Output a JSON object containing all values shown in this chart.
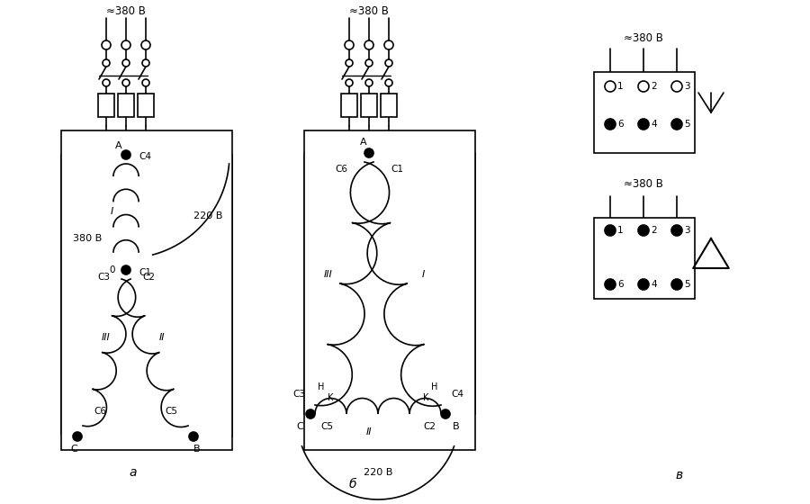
{
  "bg_color": "#ffffff",
  "line_color": "#000000",
  "voltage_380": "≈380 В",
  "voltage_220": "220 В",
  "voltage_380b": "380 В",
  "label_a_ru": "а",
  "label_b_ru": "б",
  "label_v_ru": "в"
}
